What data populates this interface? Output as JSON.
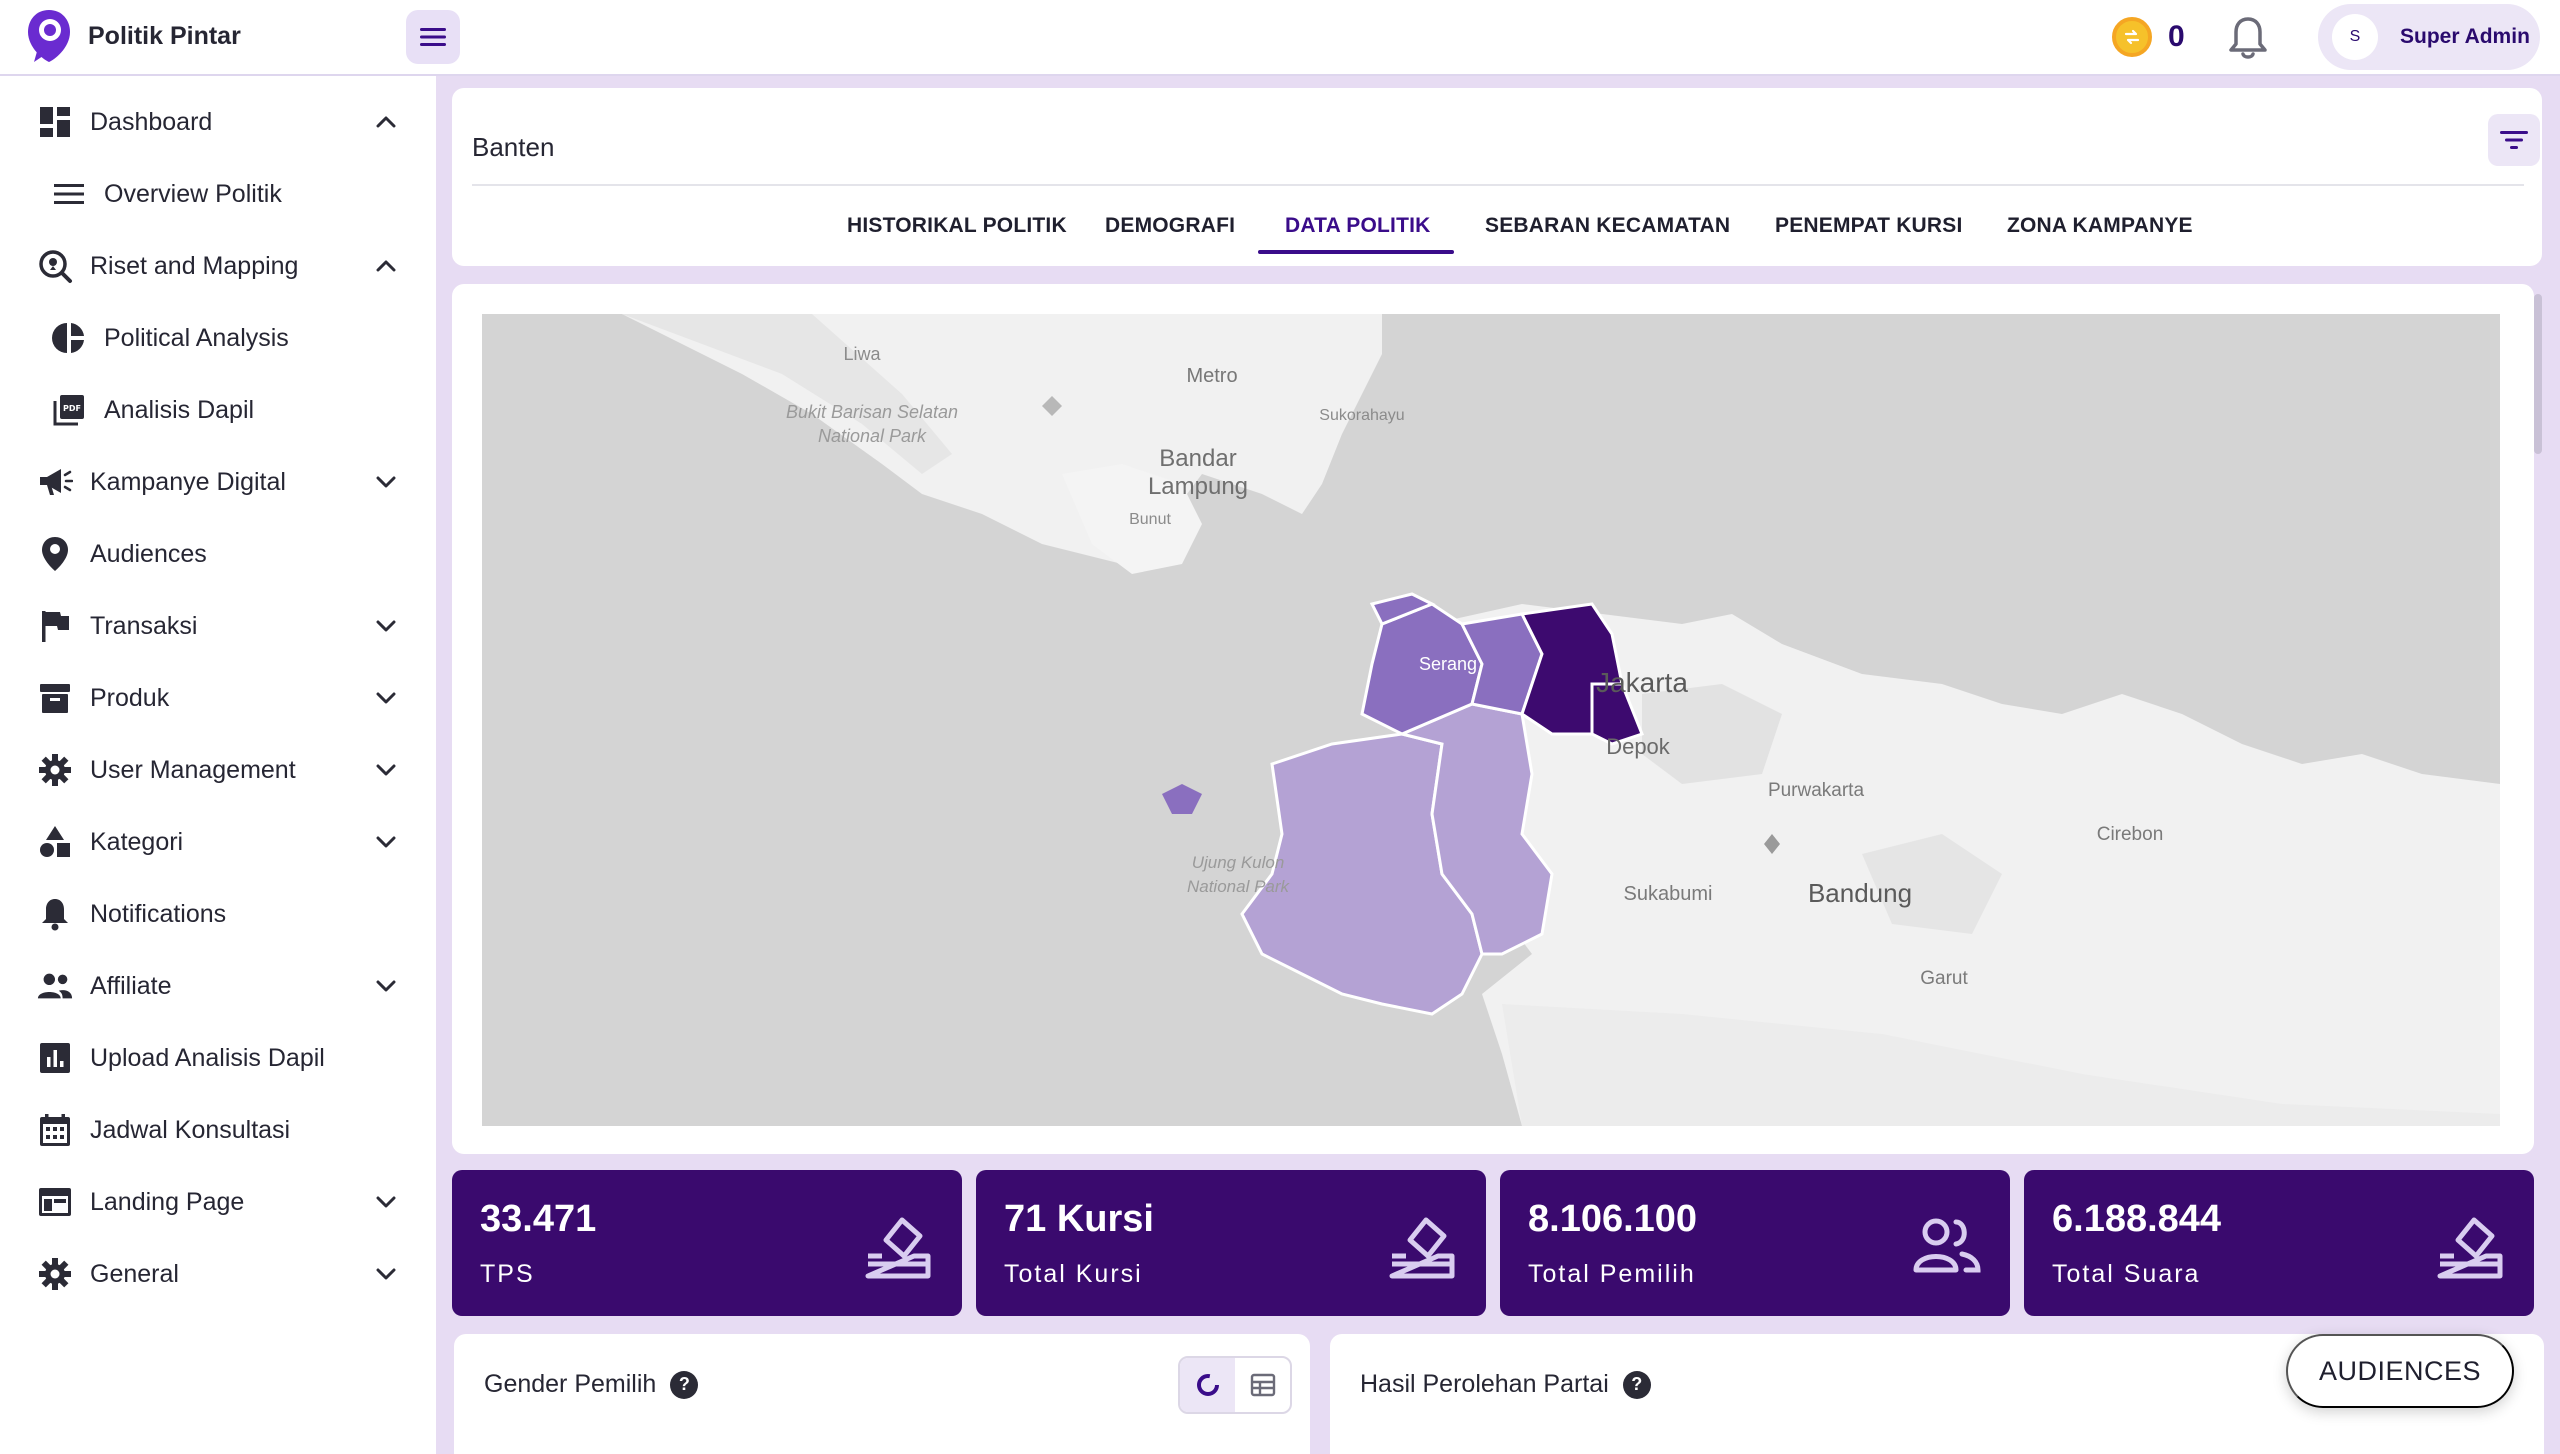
{
  "app": {
    "name": "Politik Pintar",
    "coin_count": "0",
    "user": {
      "initial": "S",
      "name": "Super Admin"
    }
  },
  "sidebar": {
    "items": [
      {
        "label": "Dashboard",
        "icon": "dashboard-icon",
        "chevron": "up"
      },
      {
        "label": "Overview Politik",
        "icon": "list-icon",
        "sub": true
      },
      {
        "label": "Riset and Mapping",
        "icon": "map-search-icon",
        "chevron": "up"
      },
      {
        "label": "Political Analysis",
        "icon": "pie-chart-icon",
        "sub": true
      },
      {
        "label": "Analisis Dapil",
        "icon": "pdf-icon",
        "sub": true
      },
      {
        "label": "Kampanye Digital",
        "icon": "megaphone-icon",
        "chevron": "down"
      },
      {
        "label": "Audiences",
        "icon": "location-pin-icon"
      },
      {
        "label": "Transaksi",
        "icon": "flag-icon",
        "chevron": "down"
      },
      {
        "label": "Produk",
        "icon": "archive-icon",
        "chevron": "down"
      },
      {
        "label": "User Management",
        "icon": "gear-icon",
        "chevron": "down"
      },
      {
        "label": "Kategori",
        "icon": "shapes-icon",
        "chevron": "down"
      },
      {
        "label": "Notifications",
        "icon": "bell-icon"
      },
      {
        "label": "Affiliate",
        "icon": "people-icon",
        "chevron": "down"
      },
      {
        "label": "Upload Analisis Dapil",
        "icon": "bar-chart-icon"
      },
      {
        "label": "Jadwal Konsultasi",
        "icon": "calendar-icon"
      },
      {
        "label": "Landing Page",
        "icon": "web-icon",
        "chevron": "down"
      },
      {
        "label": "General",
        "icon": "gear-icon",
        "chevron": "down"
      }
    ]
  },
  "header": {
    "region": "Banten",
    "tabs": [
      {
        "label": "HISTORIKAL POLITIK",
        "active": false
      },
      {
        "label": "DEMOGRAFI",
        "active": false
      },
      {
        "label": "DATA POLITIK",
        "active": true
      },
      {
        "label": "SEBARAN KECAMATAN",
        "active": false
      },
      {
        "label": "PENEMPAT KURSI",
        "active": false
      },
      {
        "label": "ZONA KAMPANYE",
        "active": false
      }
    ]
  },
  "map": {
    "labels": {
      "liwa": "Liwa",
      "metro": "Metro",
      "sukorahayu": "Sukorahayu",
      "bukit": "Bukit Barisan Selatan",
      "bukit2": "National Park",
      "bandar": "Bandar",
      "lampung": "Lampung",
      "bunut": "Bunut",
      "serang": "Serang",
      "jakarta": "Jakarta",
      "depok": "Depok",
      "purwakarta": "Purwakarta",
      "cirebon": "Cirebon",
      "ujung": "Ujung Kulon",
      "ujung2": "National Park",
      "sukabumi": "Sukabumi",
      "bandung": "Bandung",
      "garut": "Garut"
    },
    "colors": {
      "water": "#d4d4d4",
      "land": "#f1f1f1",
      "light": "#b4a2d4",
      "mid": "#8a6fbf",
      "dark": "#3d0a6f"
    }
  },
  "stats": [
    {
      "value": "33.471",
      "label": "TPS",
      "icon": "ballot-box-icon"
    },
    {
      "value": "71 Kursi",
      "label": "Total Kursi",
      "icon": "ballot-box-icon"
    },
    {
      "value": "8.106.100",
      "label": "Total Pemilih",
      "icon": "people-icon"
    },
    {
      "value": "6.188.844",
      "label": "Total Suara",
      "icon": "ballot-box-icon"
    }
  ],
  "panels": {
    "gender": {
      "title": "Gender Pemilih"
    },
    "partai": {
      "title": "Hasil Perolehan Partai"
    }
  },
  "fab": {
    "label": "AUDIENCES"
  },
  "theme": {
    "primary": "#3a0a6e",
    "background": "#e7dcf3",
    "accent": "#ece6f6"
  }
}
